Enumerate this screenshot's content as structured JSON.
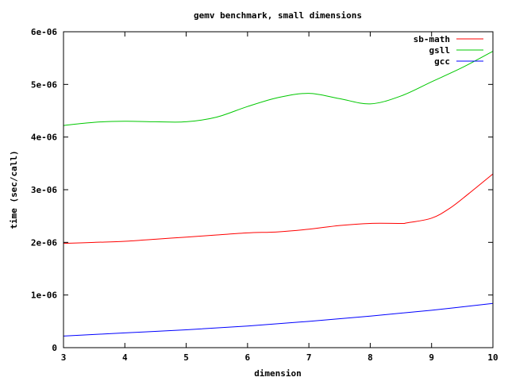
{
  "chart_data": {
    "type": "line",
    "title": "gemv benchmark, small dimensions",
    "xlabel": "dimension",
    "ylabel": "time (sec/call)",
    "xlim": [
      3,
      10
    ],
    "ylim": [
      0,
      6e-06
    ],
    "x_ticks": [
      3,
      4,
      5,
      6,
      7,
      8,
      9,
      10
    ],
    "y_ticks": [
      {
        "value": 0,
        "label": "0"
      },
      {
        "value": 1e-06,
        "label": "1e-06"
      },
      {
        "value": 2e-06,
        "label": "2e-06"
      },
      {
        "value": 3e-06,
        "label": "3e-06"
      },
      {
        "value": 4e-06,
        "label": "4e-06"
      },
      {
        "value": 5e-06,
        "label": "5e-06"
      },
      {
        "value": 6e-06,
        "label": "6e-06"
      }
    ],
    "grid": false,
    "legend_position": "top-right",
    "series": [
      {
        "name": "sb-math",
        "color": "#ff0000",
        "x": [
          3,
          3.5,
          4,
          4.5,
          5,
          5.5,
          6,
          6.5,
          7,
          7.5,
          8,
          8.5,
          8.6,
          9,
          9.3,
          9.6,
          10
        ],
        "y": [
          1.98e-06,
          2e-06,
          2.02e-06,
          2.06e-06,
          2.1e-06,
          2.14e-06,
          2.18e-06,
          2.2e-06,
          2.25e-06,
          2.32e-06,
          2.36e-06,
          2.36e-06,
          2.37e-06,
          2.46e-06,
          2.65e-06,
          2.92e-06,
          3.3e-06
        ]
      },
      {
        "name": "gsll",
        "color": "#00c800",
        "x": [
          3,
          3.5,
          4,
          4.5,
          5,
          5.5,
          6,
          6.5,
          7,
          7.5,
          8,
          8.5,
          9,
          9.5,
          10
        ],
        "y": [
          4.22e-06,
          4.28e-06,
          4.3e-06,
          4.29e-06,
          4.29e-06,
          4.38e-06,
          4.58e-06,
          4.75e-06,
          4.83e-06,
          4.73e-06,
          4.63e-06,
          4.78e-06,
          5.05e-06,
          5.32e-06,
          5.63e-06
        ]
      },
      {
        "name": "gcc",
        "color": "#0000ff",
        "x": [
          3,
          4,
          5,
          6,
          7,
          8,
          9,
          10
        ],
        "y": [
          2.2e-07,
          2.8e-07,
          3.4e-07,
          4.1e-07,
          5e-07,
          6e-07,
          7.1e-07,
          8.4e-07
        ]
      }
    ]
  }
}
